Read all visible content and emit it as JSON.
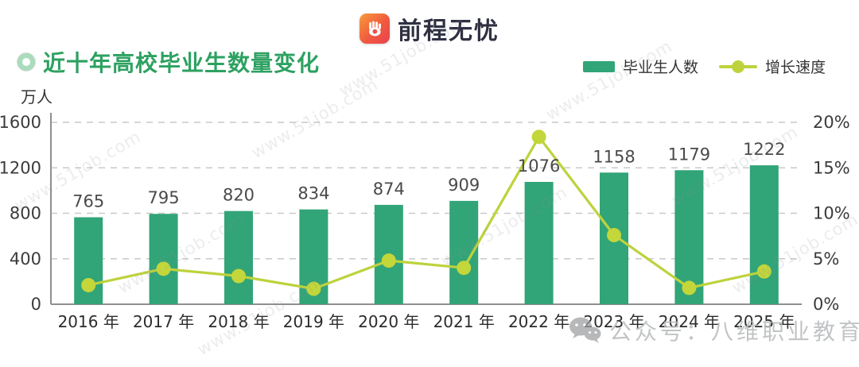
{
  "header": {
    "logo_text": "前程无忧"
  },
  "title": {
    "text": "近十年高校毕业生数量变化"
  },
  "legend": {
    "items": [
      {
        "label": "毕业生人数",
        "swatch": "bar"
      },
      {
        "label": "增长速度",
        "swatch": "line-dot"
      }
    ]
  },
  "watermark": {
    "text": "www.51job.com"
  },
  "footer_overlay": {
    "text": "公众号：八维职业教育"
  },
  "colors": {
    "bar_green": "#31a478",
    "line_green": "#bed23c",
    "dot_green": "#c3d63a",
    "title_green": "#2da161",
    "gridline": "#c9c9c9",
    "axis": "#8f8f8f"
  },
  "chart_data": {
    "type": "bar",
    "combo": "bar+line",
    "title": "近十年高校毕业生数量变化",
    "categories": [
      "2016 年",
      "2017 年",
      "2018 年",
      "2019 年",
      "2020 年",
      "2021 年",
      "2022 年",
      "2023 年",
      "2024 年",
      "2025 年"
    ],
    "series": [
      {
        "name": "毕业生人数",
        "type": "bar",
        "axis": "left",
        "values": [
          765,
          795,
          820,
          834,
          874,
          909,
          1076,
          1158,
          1179,
          1222
        ],
        "labels_shown": true
      },
      {
        "name": "增长速度",
        "type": "line",
        "axis": "right",
        "unit": "%",
        "values": [
          2.1,
          3.9,
          3.1,
          1.7,
          4.8,
          4.0,
          18.4,
          7.6,
          1.8,
          3.6
        ],
        "labels_shown": false
      }
    ],
    "y_left": {
      "unit": "万人",
      "ticks": [
        0,
        400,
        800,
        1200,
        1600
      ],
      "max": 1600
    },
    "y_right": {
      "ticks": [
        "0%",
        "5%",
        "10%",
        "15%",
        "20%"
      ],
      "tick_values": [
        0,
        5,
        10,
        15,
        20
      ],
      "max": 20
    },
    "grid": "horizontal dashed",
    "legend_position": "top-right"
  }
}
